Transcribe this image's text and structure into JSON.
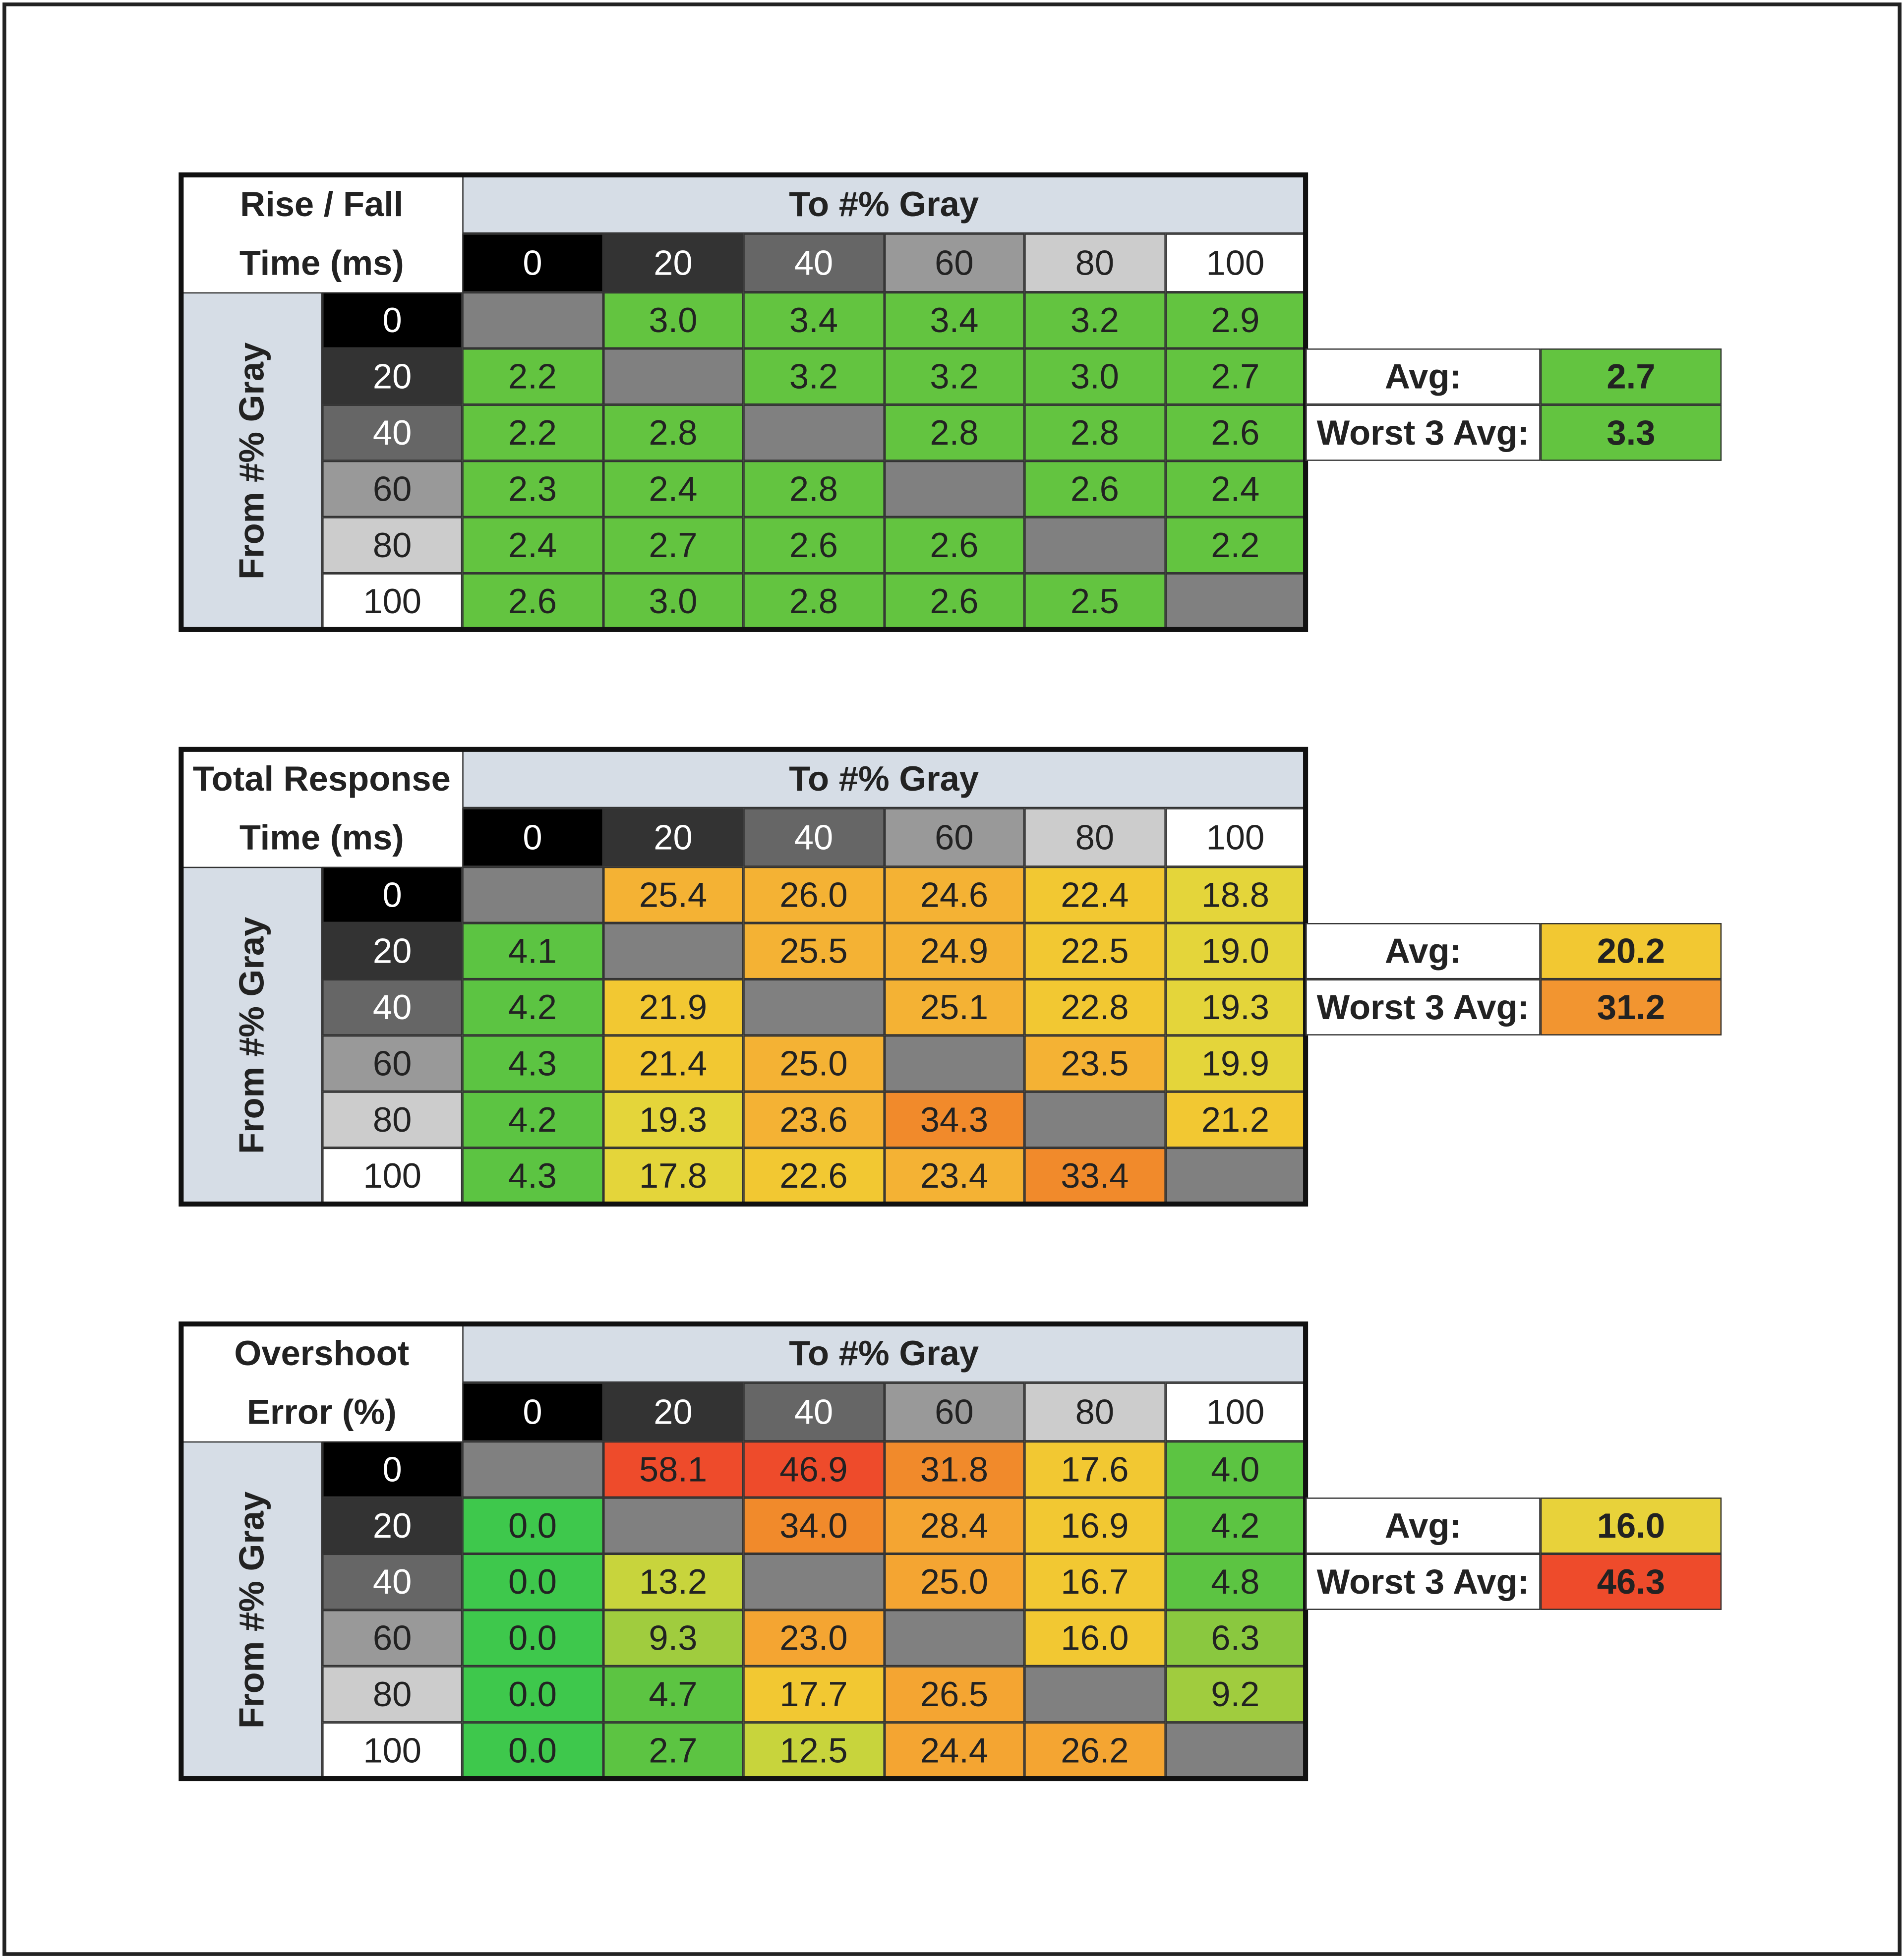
{
  "tables": [
    {
      "title_lines": [
        "Rise / Fall",
        "Time (ms)"
      ],
      "col_header": "To #% Gray",
      "row_header": "From #% Gray",
      "columns": [
        "0",
        "20",
        "40",
        "60",
        "80",
        "100"
      ],
      "rows": [
        "0",
        "20",
        "40",
        "60",
        "80",
        "100"
      ],
      "cells": [
        [
          null,
          "3.0",
          "3.4",
          "3.4",
          "3.2",
          "2.9"
        ],
        [
          "2.2",
          null,
          "3.2",
          "3.2",
          "3.0",
          "2.7"
        ],
        [
          "2.2",
          "2.8",
          null,
          "2.8",
          "2.8",
          "2.6"
        ],
        [
          "2.3",
          "2.4",
          "2.8",
          null,
          "2.6",
          "2.4"
        ],
        [
          "2.4",
          "2.7",
          "2.6",
          "2.6",
          null,
          "2.2"
        ],
        [
          "2.6",
          "3.0",
          "2.8",
          "2.6",
          "2.5",
          null
        ]
      ],
      "colors": [
        [
          null,
          "#63c440",
          "#63c440",
          "#63c440",
          "#63c440",
          "#63c440"
        ],
        [
          "#63c440",
          null,
          "#63c440",
          "#63c440",
          "#63c440",
          "#63c440"
        ],
        [
          "#63c440",
          "#63c440",
          null,
          "#63c440",
          "#63c440",
          "#63c440"
        ],
        [
          "#63c440",
          "#63c440",
          "#63c440",
          null,
          "#63c440",
          "#63c440"
        ],
        [
          "#63c440",
          "#63c440",
          "#63c440",
          "#63c440",
          null,
          "#63c440"
        ],
        [
          "#63c440",
          "#63c440",
          "#63c440",
          "#63c440",
          "#63c440",
          null
        ]
      ],
      "summary": [
        {
          "label": "Avg:",
          "value": "2.7",
          "color": "#63c440"
        },
        {
          "label": "Worst 3 Avg:",
          "value": "3.3",
          "color": "#63c440"
        }
      ]
    },
    {
      "title_lines": [
        "Total Response",
        "Time (ms)"
      ],
      "col_header": "To #% Gray",
      "row_header": "From #% Gray",
      "columns": [
        "0",
        "20",
        "40",
        "60",
        "80",
        "100"
      ],
      "rows": [
        "0",
        "20",
        "40",
        "60",
        "80",
        "100"
      ],
      "cells": [
        [
          null,
          "25.4",
          "26.0",
          "24.6",
          "22.4",
          "18.8"
        ],
        [
          "4.1",
          null,
          "25.5",
          "24.9",
          "22.5",
          "19.0"
        ],
        [
          "4.2",
          "21.9",
          null,
          "25.1",
          "22.8",
          "19.3"
        ],
        [
          "4.3",
          "21.4",
          "25.0",
          null,
          "23.5",
          "19.9"
        ],
        [
          "4.2",
          "19.3",
          "23.6",
          "34.3",
          null,
          "21.2"
        ],
        [
          "4.3",
          "17.8",
          "22.6",
          "23.4",
          "33.4",
          null
        ]
      ],
      "colors": [
        [
          null,
          "#f4b234",
          "#f4b234",
          "#f4b234",
          "#f2c832",
          "#e4d53a"
        ],
        [
          "#5cc442",
          null,
          "#f4b234",
          "#f4b234",
          "#f2c832",
          "#e4d53a"
        ],
        [
          "#5cc442",
          "#f2c832",
          null,
          "#f4b234",
          "#f2c832",
          "#e4d53a"
        ],
        [
          "#5cc442",
          "#f2c832",
          "#f4b234",
          null,
          "#f4b234",
          "#e4d53a"
        ],
        [
          "#5cc442",
          "#e4d53a",
          "#f4b234",
          "#f18a2b",
          null,
          "#f2c832"
        ],
        [
          "#5cc442",
          "#e4d53a",
          "#f2c832",
          "#f4b234",
          "#f18a2b",
          null
        ]
      ],
      "summary": [
        {
          "label": "Avg:",
          "value": "20.2",
          "color": "#f2c832"
        },
        {
          "label": "Worst 3 Avg:",
          "value": "31.2",
          "color": "#f29530"
        }
      ]
    },
    {
      "title_lines": [
        "Overshoot",
        "Error (%)"
      ],
      "col_header": "To #% Gray",
      "row_header": "From #% Gray",
      "columns": [
        "0",
        "20",
        "40",
        "60",
        "80",
        "100"
      ],
      "rows": [
        "0",
        "20",
        "40",
        "60",
        "80",
        "100"
      ],
      "cells": [
        [
          null,
          "58.1",
          "46.9",
          "31.8",
          "17.6",
          "4.0"
        ],
        [
          "0.0",
          null,
          "34.0",
          "28.4",
          "16.9",
          "4.2"
        ],
        [
          "0.0",
          "13.2",
          null,
          "25.0",
          "16.7",
          "4.8"
        ],
        [
          "0.0",
          "9.3",
          "23.0",
          null,
          "16.0",
          "6.3"
        ],
        [
          "0.0",
          "4.7",
          "17.7",
          "26.5",
          null,
          "9.2"
        ],
        [
          "0.0",
          "2.7",
          "12.5",
          "24.4",
          "26.2",
          null
        ]
      ],
      "colors": [
        [
          null,
          "#ee4b2b",
          "#ee4b2b",
          "#f18a2b",
          "#f2c832",
          "#5cc442"
        ],
        [
          "#3ec84c",
          null,
          "#f18a2b",
          "#f4a532",
          "#f2c832",
          "#5cc442"
        ],
        [
          "#3ec84c",
          "#c8d43c",
          null,
          "#f4a532",
          "#f2c832",
          "#5cc442"
        ],
        [
          "#3ec84c",
          "#a0cc3e",
          "#f4a532",
          null,
          "#f2c832",
          "#8ac83f"
        ],
        [
          "#3ec84c",
          "#5cc442",
          "#f2c832",
          "#f4a532",
          null,
          "#a0cc3e"
        ],
        [
          "#3ec84c",
          "#5cc442",
          "#c8d43c",
          "#f4a532",
          "#f4a532",
          null
        ]
      ],
      "summary": [
        {
          "label": "Avg:",
          "value": "16.0",
          "color": "#e8d23a"
        },
        {
          "label": "Worst 3 Avg:",
          "value": "46.3",
          "color": "#ee4b2b"
        }
      ]
    }
  ]
}
